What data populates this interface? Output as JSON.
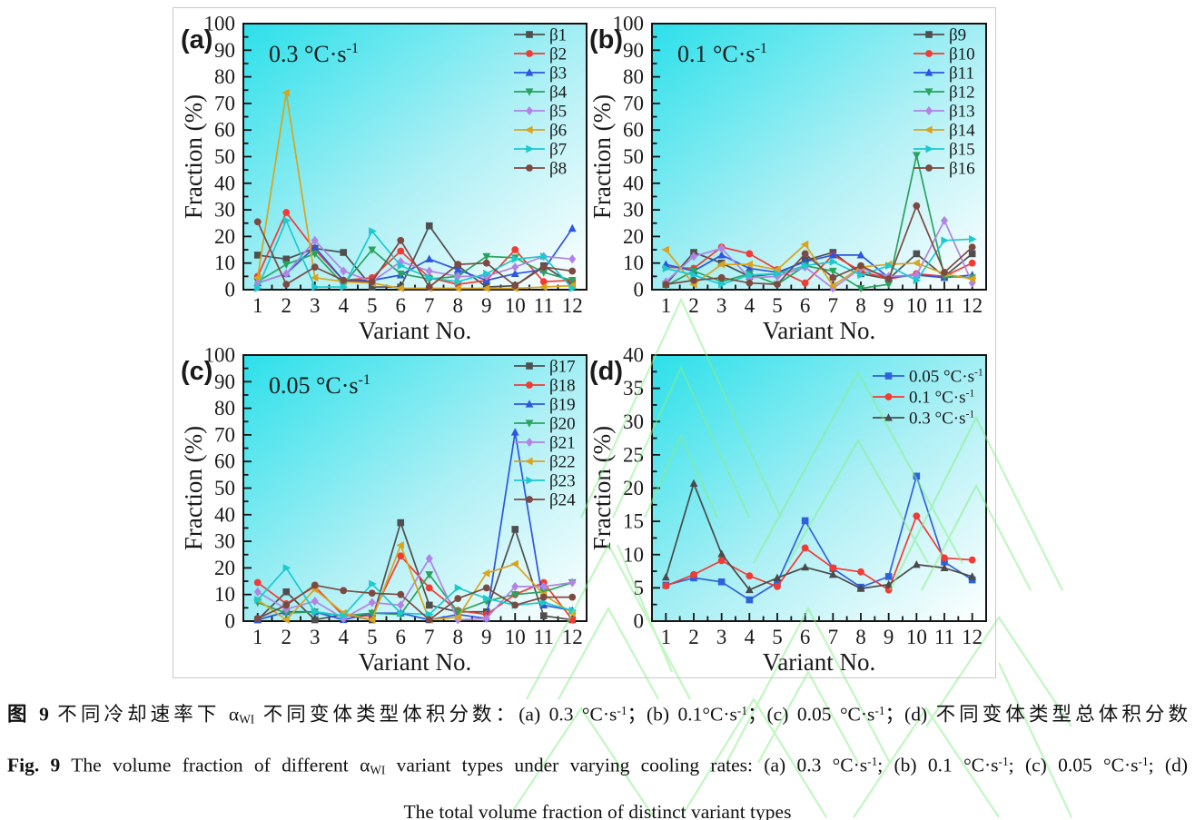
{
  "colors": {
    "plot_bg_start": "#2ce0ea",
    "plot_bg_end": "#ffffff",
    "frame": "#141414",
    "watermark": "#86ef86",
    "series_palette": [
      "#4f4f4f",
      "#f13b34",
      "#2e55dd",
      "#2aa35f",
      "#b184e4",
      "#d9a41c",
      "#1cc9cd",
      "#7c4a42"
    ]
  },
  "chart_data": [
    {
      "type": "line",
      "panel": "(a)",
      "annotation": "0.3 °C·s-1",
      "xlabel": "Variant No.",
      "ylabel": "Fraction (%)",
      "x": [
        1,
        2,
        3,
        4,
        5,
        6,
        7,
        8,
        9,
        10,
        11,
        12
      ],
      "ylim": [
        0,
        100
      ],
      "ytick_step": 10,
      "legend_position": "top-right",
      "series": [
        {
          "name": "β1",
          "marker": "square",
          "color": "#4f4f4f",
          "values": [
            13,
            11.5,
            15.5,
            14,
            1,
            1,
            24,
            9,
            1,
            1.5,
            9,
            2
          ]
        },
        {
          "name": "β2",
          "marker": "circle",
          "color": "#f13b34",
          "values": [
            5,
            29,
            15,
            3.5,
            4.5,
            14.5,
            4.5,
            2,
            3.5,
            15,
            3,
            3.5
          ]
        },
        {
          "name": "β3",
          "marker": "tri-up",
          "color": "#2e55dd",
          "values": [
            2.5,
            6,
            16,
            3.5,
            3.5,
            5.5,
            11.5,
            7.5,
            3.5,
            6,
            7.5,
            23
          ]
        },
        {
          "name": "β4",
          "marker": "tri-down",
          "color": "#2aa35f",
          "values": [
            3,
            9.5,
            13.5,
            2,
            15,
            6,
            4,
            5,
            12.5,
            12,
            6.5,
            3.5
          ]
        },
        {
          "name": "β5",
          "marker": "diamond",
          "color": "#b184e4",
          "values": [
            2.5,
            6,
            18.5,
            7,
            3,
            10.5,
            7,
            5,
            5,
            8.5,
            12.5,
            11.5
          ]
        },
        {
          "name": "β6",
          "marker": "tri-left",
          "color": "#d9a41c",
          "values": [
            4.5,
            74,
            4.5,
            3,
            2.5,
            0.5,
            0.5,
            0.5,
            0.5,
            0.5,
            1,
            1.5
          ]
        },
        {
          "name": "β7",
          "marker": "tri-right",
          "color": "#1cc9cd",
          "values": [
            0.5,
            26,
            1,
            1,
            22,
            9,
            4.5,
            3,
            6,
            11.5,
            12.5,
            0.5
          ]
        },
        {
          "name": "β8",
          "marker": "circle",
          "color": "#7c4a42",
          "values": [
            25.5,
            2,
            8.5,
            3.5,
            3,
            18.5,
            1,
            9.5,
            10,
            1.5,
            8.5,
            7
          ]
        }
      ]
    },
    {
      "type": "line",
      "panel": "(b)",
      "annotation": "0.1 °C·s-1",
      "xlabel": "Variant No.",
      "ylabel": "Fraction (%)",
      "x": [
        1,
        2,
        3,
        4,
        5,
        6,
        7,
        8,
        9,
        10,
        11,
        12
      ],
      "ylim": [
        0,
        100
      ],
      "ytick_step": 10,
      "legend_position": "top-right",
      "series": [
        {
          "name": "β9",
          "marker": "square",
          "color": "#4f4f4f",
          "values": [
            2,
            14,
            10,
            5,
            6,
            11,
            14,
            6,
            4,
            13.5,
            5,
            13.5
          ]
        },
        {
          "name": "β10",
          "marker": "circle",
          "color": "#f13b34",
          "values": [
            8.5,
            8,
            16,
            13.5,
            7.5,
            2.5,
            13,
            7,
            4,
            6,
            5,
            10
          ]
        },
        {
          "name": "β11",
          "marker": "tri-up",
          "color": "#2e55dd",
          "values": [
            9.5,
            7,
            13,
            8,
            6.5,
            10.5,
            13,
            13,
            4.5,
            5.5,
            4.5,
            5.5
          ]
        },
        {
          "name": "β12",
          "marker": "tri-down",
          "color": "#2aa35f",
          "values": [
            1.5,
            7,
            3,
            6,
            2,
            9,
            7,
            0.5,
            2,
            50.5,
            5,
            4.5
          ]
        },
        {
          "name": "β13",
          "marker": "diamond",
          "color": "#b184e4",
          "values": [
            3,
            12.5,
            15.5,
            4.5,
            5,
            8.5,
            0.5,
            8,
            5,
            5.5,
            26,
            2.5
          ]
        },
        {
          "name": "β14",
          "marker": "tri-left",
          "color": "#d9a41c",
          "values": [
            15,
            2,
            9.5,
            9.5,
            7.5,
            17,
            1.5,
            8.5,
            9.5,
            10,
            6,
            4
          ]
        },
        {
          "name": "β15",
          "marker": "tri-right",
          "color": "#1cc9cd",
          "values": [
            8,
            5.5,
            2,
            5.5,
            6,
            9,
            10.5,
            5.5,
            9,
            3.5,
            18.5,
            19
          ]
        },
        {
          "name": "β16",
          "marker": "circle",
          "color": "#7c4a42",
          "values": [
            2,
            3.5,
            4.5,
            2.5,
            2,
            13.5,
            4.5,
            9,
            4,
            31.5,
            6.5,
            16
          ]
        }
      ]
    },
    {
      "type": "line",
      "panel": "(c)",
      "annotation": "0.05 °C·s-1",
      "xlabel": "Variant No.",
      "ylabel": "Fraction (%)",
      "x": [
        1,
        2,
        3,
        4,
        5,
        6,
        7,
        8,
        9,
        10,
        11,
        12
      ],
      "ylim": [
        0,
        100
      ],
      "ytick_step": 10,
      "legend_position": "top-right",
      "series": [
        {
          "name": "β17",
          "marker": "square",
          "color": "#4f4f4f",
          "values": [
            0.5,
            11,
            0.5,
            2.5,
            0.5,
            37,
            6,
            3.5,
            3.5,
            34.5,
            2,
            0.5
          ]
        },
        {
          "name": "β18",
          "marker": "circle",
          "color": "#f13b34",
          "values": [
            14.5,
            6.5,
            13,
            2,
            2,
            24.5,
            12.5,
            4,
            2.5,
            10,
            14.5,
            0.5
          ]
        },
        {
          "name": "β19",
          "marker": "tri-up",
          "color": "#2e55dd",
          "values": [
            0.5,
            3.5,
            3.5,
            0.5,
            3,
            3,
            0.5,
            2.5,
            1,
            71,
            6,
            4
          ]
        },
        {
          "name": "β20",
          "marker": "tri-down",
          "color": "#2aa35f",
          "values": [
            7,
            3,
            3.5,
            2,
            3,
            2.5,
            17.5,
            3.5,
            7.5,
            10,
            11,
            14.5
          ]
        },
        {
          "name": "β21",
          "marker": "diamond",
          "color": "#b184e4",
          "values": [
            11,
            4.5,
            7.5,
            1,
            7,
            6,
            23.5,
            0.5,
            1,
            13,
            13,
            14.5
          ]
        },
        {
          "name": "β22",
          "marker": "tri-left",
          "color": "#d9a41c",
          "values": [
            8,
            0.5,
            12,
            3,
            0.5,
            28.5,
            0.5,
            1.5,
            18,
            21.5,
            10,
            3
          ]
        },
        {
          "name": "β23",
          "marker": "tri-right",
          "color": "#1cc9cd",
          "values": [
            8,
            20,
            3.5,
            2,
            14,
            3,
            2.5,
            12.5,
            8.5,
            6,
            7,
            4
          ]
        },
        {
          "name": "β24",
          "marker": "circle",
          "color": "#7c4a42",
          "values": [
            1,
            6,
            13.5,
            11.5,
            10.5,
            10,
            0.5,
            8.5,
            12.5,
            6,
            9,
            9
          ]
        }
      ]
    },
    {
      "type": "line",
      "panel": "(d)",
      "annotation": "",
      "xlabel": "Variant No.",
      "ylabel": "Fraction (%)",
      "x": [
        1,
        2,
        3,
        4,
        5,
        6,
        7,
        8,
        9,
        10,
        11,
        12
      ],
      "ylim": [
        0,
        40
      ],
      "ytick_step": 5,
      "legend_position": "top-right",
      "series": [
        {
          "name": "0.05 °C·s-1",
          "marker": "square",
          "color": "#2e62d9",
          "values": [
            5.4,
            6.5,
            5.9,
            3.2,
            5.8,
            15.1,
            7.9,
            5.1,
            6.7,
            21.8,
            8.9,
            6.2
          ]
        },
        {
          "name": "0.1 °C·s-1",
          "marker": "circle",
          "color": "#f13b34",
          "values": [
            5.3,
            7.0,
            9.1,
            6.8,
            5.2,
            11.0,
            8.0,
            7.4,
            4.7,
            15.8,
            9.5,
            9.2
          ]
        },
        {
          "name": "0.3 °C·s-1",
          "marker": "tri-up",
          "color": "#4a4a4a",
          "values": [
            6.6,
            20.7,
            10.1,
            4.7,
            6.5,
            8.1,
            7.0,
            4.9,
            5.5,
            8.5,
            8.0,
            6.7
          ]
        }
      ]
    }
  ],
  "caption": {
    "zh_segments": [
      {
        "t": "图 9",
        "b": true
      },
      {
        "t": "  不同冷却速率下 α"
      },
      {
        "t": "WI",
        "sub": true
      },
      {
        "t": " 不同变体类型体积分数：(a) 0.3 °C·s"
      },
      {
        "t": "-1",
        "sup": true
      },
      {
        "t": "；(b) 0.1°C·s"
      },
      {
        "t": "-1",
        "sup": true
      },
      {
        "t": "；(c) 0.05 °C·s"
      },
      {
        "t": "-1",
        "sup": true
      },
      {
        "t": "；(d) 不同变体类型总体积分数"
      }
    ],
    "en_line1_segments": [
      {
        "t": "Fig. 9",
        "b": true
      },
      {
        "t": "  The volume fraction of different α"
      },
      {
        "t": "WI",
        "sub": true
      },
      {
        "t": " variant types under varying cooling rates: (a) 0.3 °C·s"
      },
      {
        "t": "-1",
        "sup": true
      },
      {
        "t": "; (b) 0.1 °C·s"
      },
      {
        "t": "-1",
        "sup": true
      },
      {
        "t": "; (c) 0.05 °C·s"
      },
      {
        "t": "-1",
        "sup": true
      },
      {
        "t": "; (d)"
      }
    ],
    "en_line2": "The total volume fraction of distinct variant types"
  }
}
